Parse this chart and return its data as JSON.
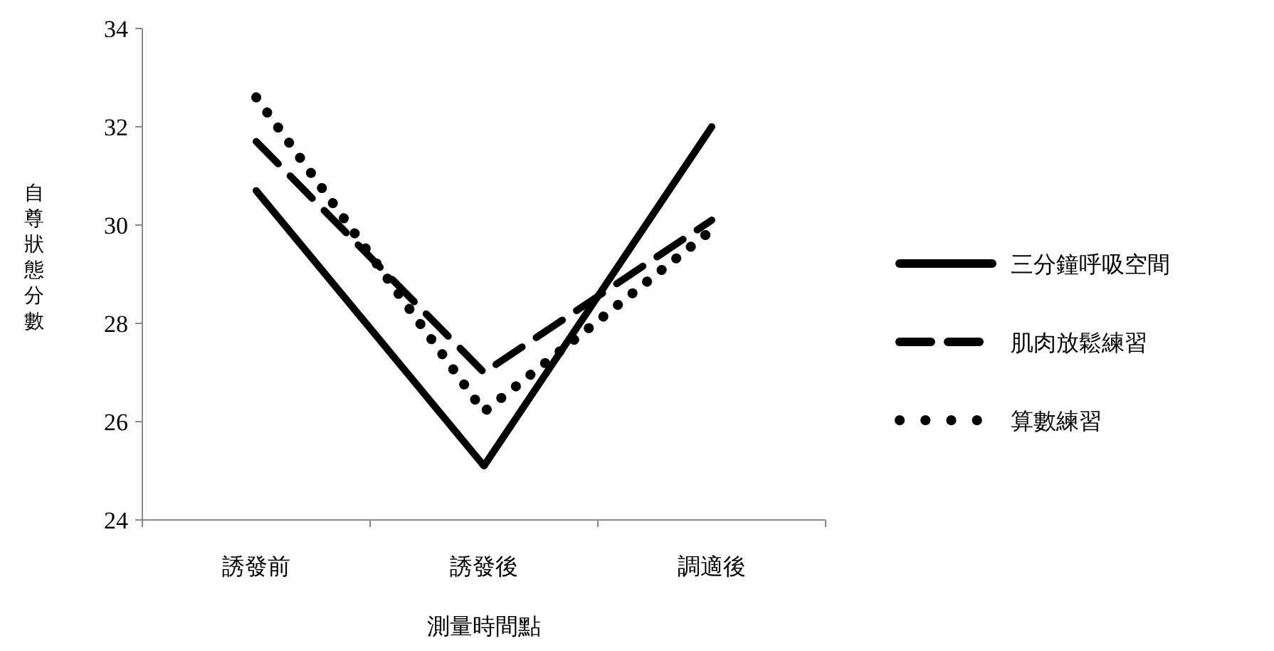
{
  "chart_data": {
    "type": "line",
    "xlabel": "測量時間點",
    "ylabel": "自尊狀態分數",
    "categories": [
      "誘發前",
      "誘發後",
      "調適後"
    ],
    "series": [
      {
        "name": "三分鐘呼吸空間",
        "color": "#000000",
        "line_style": "solid",
        "values": [
          30.7,
          25.1,
          32.0
        ]
      },
      {
        "name": "肌肉放鬆練習",
        "color": "#000000",
        "line_style": "dashed",
        "values": [
          31.7,
          27.0,
          30.1
        ]
      },
      {
        "name": "算數練習",
        "color": "#000000",
        "line_style": "dotted",
        "values": [
          32.6,
          26.2,
          29.9
        ]
      }
    ],
    "ylim": [
      24,
      34
    ],
    "yticks": [
      24,
      26,
      28,
      30,
      32,
      34
    ],
    "grid": false,
    "legend": "right",
    "marker": "none"
  }
}
